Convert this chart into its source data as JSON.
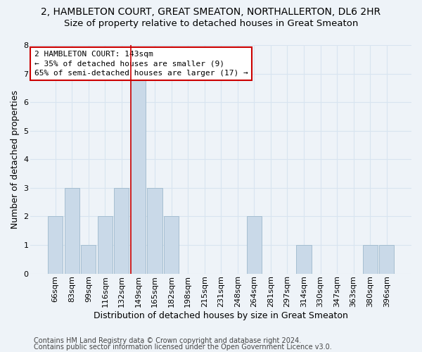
{
  "title": "2, HAMBLETON COURT, GREAT SMEATON, NORTHALLERTON, DL6 2HR",
  "subtitle": "Size of property relative to detached houses in Great Smeaton",
  "xlabel": "Distribution of detached houses by size in Great Smeaton",
  "ylabel": "Number of detached properties",
  "bar_labels": [
    "66sqm",
    "83sqm",
    "99sqm",
    "116sqm",
    "132sqm",
    "149sqm",
    "165sqm",
    "182sqm",
    "198sqm",
    "215sqm",
    "231sqm",
    "248sqm",
    "264sqm",
    "281sqm",
    "297sqm",
    "314sqm",
    "330sqm",
    "347sqm",
    "363sqm",
    "380sqm",
    "396sqm"
  ],
  "bar_values": [
    2,
    3,
    1,
    2,
    3,
    7,
    3,
    2,
    0,
    0,
    0,
    0,
    2,
    0,
    0,
    1,
    0,
    0,
    0,
    1,
    1
  ],
  "bar_color": "#c9d9e8",
  "bar_edge_color": "#9db8cc",
  "vline_x": 4.575,
  "vline_color": "#cc0000",
  "ylim": [
    0,
    8
  ],
  "yticks": [
    0,
    1,
    2,
    3,
    4,
    5,
    6,
    7,
    8
  ],
  "annotation_line1": "2 HAMBLETON COURT: 143sqm",
  "annotation_line2": "← 35% of detached houses are smaller (9)",
  "annotation_line3": "65% of semi-detached houses are larger (17) →",
  "annotation_box_color": "#ffffff",
  "annotation_box_edge": "#cc0000",
  "footer1": "Contains HM Land Registry data © Crown copyright and database right 2024.",
  "footer2": "Contains public sector information licensed under the Open Government Licence v3.0.",
  "background_color": "#eef3f8",
  "grid_color": "#d8e4f0",
  "title_fontsize": 10,
  "subtitle_fontsize": 9.5,
  "axis_label_fontsize": 9,
  "tick_fontsize": 8,
  "annot_fontsize": 8,
  "footer_fontsize": 7
}
